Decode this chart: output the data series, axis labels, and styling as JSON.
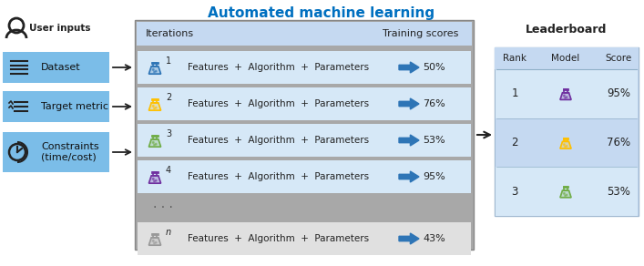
{
  "title": "Automated machine learning",
  "title_color": "#0070C0",
  "bg_color": "#ffffff",
  "panel_bg": "#A0A0A0",
  "row_bg_light": "#D6E8F7",
  "row_bg_lighter": "#E8F2FA",
  "header_bg": "#C8DCF0",
  "lb_bg": "#C8DCF0",
  "input_bg": "#7BBDE8",
  "text_dark": "#222222",
  "arrow_blue": "#2E75B6",
  "iterations": [
    {
      "num": "1",
      "flask_color": "#2E75B6",
      "flask_body": "#2E75B6",
      "score": "50%"
    },
    {
      "num": "2",
      "flask_color": "#FFC000",
      "flask_body": "#FFC000",
      "score": "76%"
    },
    {
      "num": "3",
      "flask_color": "#70AD47",
      "flask_body": "#70AD47",
      "score": "53%"
    },
    {
      "num": "4",
      "flask_color": "#7030A0",
      "flask_body": "#7030A0",
      "score": "95%"
    },
    {
      "num": "n",
      "flask_color": "#999999",
      "flask_body": "#999999",
      "score": "43%"
    }
  ],
  "leaderboard": [
    {
      "rank": "1",
      "flask_color": "#7030A0",
      "score": "95%"
    },
    {
      "rank": "2",
      "flask_color": "#FFC000",
      "score": "76%"
    },
    {
      "rank": "3",
      "flask_color": "#70AD47",
      "score": "53%"
    }
  ]
}
